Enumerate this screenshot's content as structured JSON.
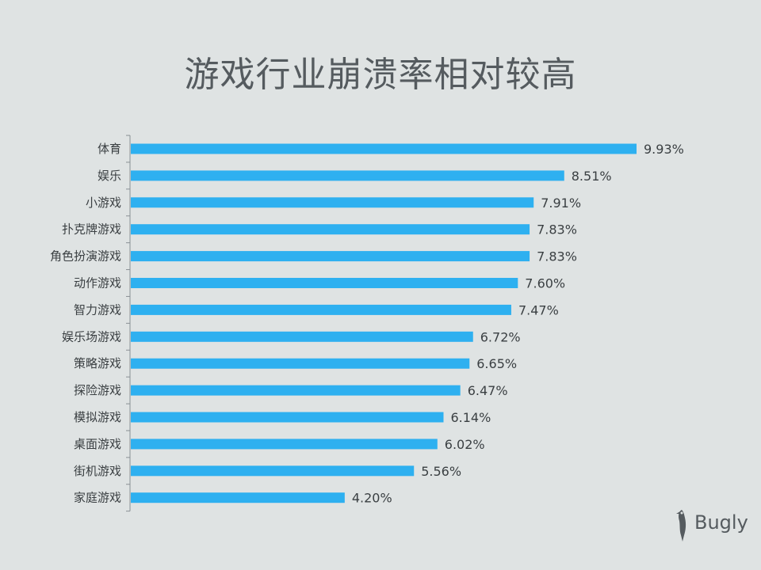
{
  "title": "游戏行业崩溃率相对较高",
  "logo_text": "Bugly",
  "colors": {
    "bar": "#2eb0f0",
    "background": "#dfe3e3",
    "text": "#3a3f42"
  },
  "chart_data": {
    "type": "bar",
    "orientation": "horizontal",
    "title": "游戏行业崩溃率相对较高",
    "xlabel": "",
    "ylabel": "",
    "categories": [
      "体育",
      "娱乐",
      "小游戏",
      "扑克牌游戏",
      "角色扮演游戏",
      "动作游戏",
      "智力游戏",
      "娱乐场游戏",
      "策略游戏",
      "探险游戏",
      "模拟游戏",
      "桌面游戏",
      "街机游戏",
      "家庭游戏"
    ],
    "values": [
      9.93,
      8.51,
      7.91,
      7.83,
      7.83,
      7.6,
      7.47,
      6.72,
      6.65,
      6.47,
      6.14,
      6.02,
      5.56,
      4.2
    ],
    "value_labels": [
      "9.93%",
      "8.51%",
      "7.91%",
      "7.83%",
      "7.83%",
      "7.60%",
      "7.47%",
      "6.72%",
      "6.65%",
      "6.47%",
      "6.14%",
      "6.02%",
      "5.56%",
      "4.20%"
    ],
    "xlim": [
      0,
      9.93
    ],
    "grid": false,
    "legend": "none"
  }
}
